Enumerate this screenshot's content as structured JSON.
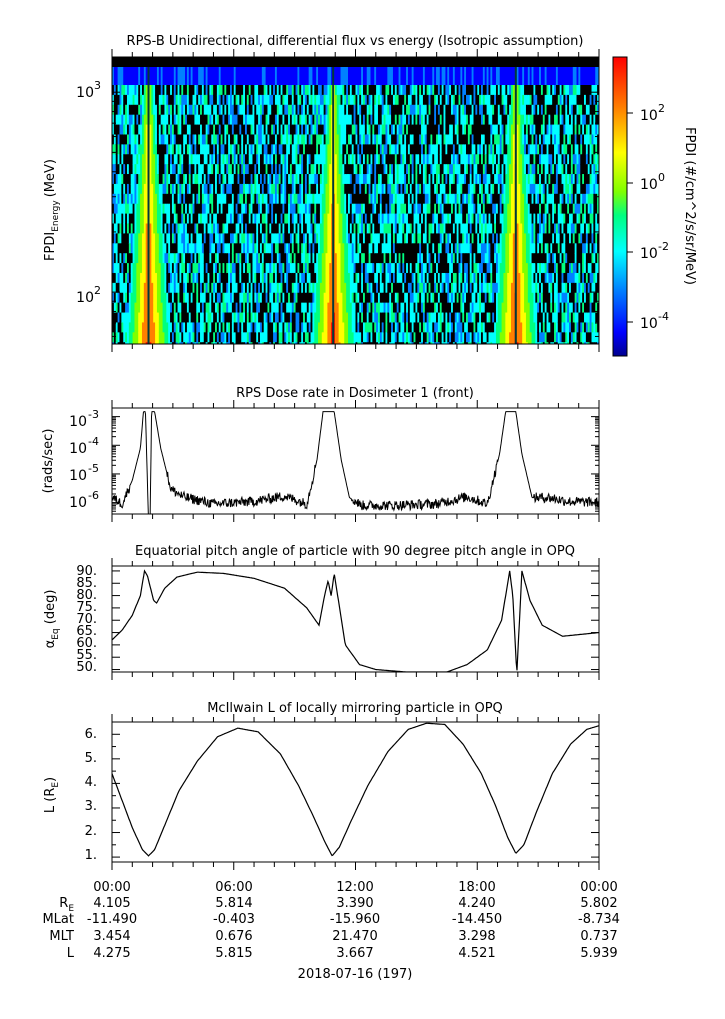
{
  "panels": [
    {
      "title": "RPS-B  Unidirectional, differential flux vs energy (Isotropic assumption)",
      "ylabel_main": "FPDI",
      "ylabel_sub": "Energy",
      "ylabel_unit": "(MeV)",
      "ytick_labels": [
        "10",
        "10"
      ],
      "ytick_exps": [
        "3",
        "2"
      ],
      "colorbar": {
        "label": "FPDI (#/cm^2/s/sr/MeV)",
        "tick_labels": [
          "10",
          "10",
          "10",
          "10"
        ],
        "tick_exps": [
          "2",
          "0",
          "-2",
          "-4"
        ],
        "colors": [
          "#00008f",
          "#0000ff",
          "#0080ff",
          "#00ffff",
          "#00ff80",
          "#80ff00",
          "#ffff00",
          "#ff8000",
          "#ff0000"
        ]
      }
    },
    {
      "title": "RPS  Dose rate in Dosimeter 1 (front)",
      "ylabel": "(rads/sec)",
      "ytick_labels": [
        "10",
        "10",
        "10",
        "10"
      ],
      "ytick_exps": [
        "-3",
        "-4",
        "-5",
        "-6"
      ]
    },
    {
      "title": "Equatorial pitch angle of particle with 90 degree pitch angle in OPQ",
      "ylabel_main": "α",
      "ylabel_sub": "Eq",
      "ylabel_unit": " (deg)",
      "ytick_labels": [
        "90.",
        "85.",
        "80.",
        "75.",
        "70.",
        "65.",
        "60.",
        "55.",
        "50."
      ]
    },
    {
      "title": "McIlwain L of locally mirroring particle in OPQ",
      "ylabel_main": "L (R",
      "ylabel_sub": "E",
      "ylabel_unit": ")",
      "ytick_labels": [
        "6.",
        "5.",
        "4.",
        "3.",
        "2.",
        "1."
      ]
    }
  ],
  "xaxis": {
    "time_labels": [
      "00:00",
      "06:00",
      "12:00",
      "18:00",
      "00:00"
    ],
    "ephem_rows": [
      {
        "label": "R",
        "label_sub": "E",
        "values": [
          "4.105",
          "5.814",
          "3.390",
          "4.240",
          "5.802"
        ]
      },
      {
        "label": "MLat",
        "label_sub": "",
        "values": [
          "-11.490",
          "-0.403",
          "-15.960",
          "-14.450",
          "-8.734"
        ]
      },
      {
        "label": "MLT",
        "label_sub": "",
        "values": [
          "3.454",
          "0.676",
          "21.470",
          "3.298",
          "0.737"
        ]
      },
      {
        "label": "L",
        "label_sub": "",
        "values": [
          "4.275",
          "5.815",
          "3.667",
          "4.521",
          "5.939"
        ]
      }
    ],
    "date_label": "2018-07-16 (197)"
  },
  "chart_data": [
    {
      "type": "heatmap",
      "title": "RPS-B  Unidirectional, differential flux vs energy (Isotropic assumption)",
      "xlabel": "",
      "ylabel": "FPDI Energy (MeV)",
      "x_range_hours": [
        0,
        24
      ],
      "y_range_MeV": [
        55,
        1500
      ],
      "y_scale": "log",
      "color_label": "FPDI (#/cm^2/s/sr/MeV)",
      "color_range": [
        1e-05,
        3000
      ],
      "color_scale": "log",
      "peak_flux_times_hours": [
        1.8,
        10.9,
        19.9
      ]
    },
    {
      "type": "line",
      "title": "RPS  Dose rate in Dosimeter 1 (front)",
      "ylabel": "(rads/sec)",
      "y_scale": "log",
      "ylim": [
        4e-07,
        0.002
      ],
      "x_hours": [
        0.0,
        0.5,
        1.0,
        1.4,
        1.55,
        1.65,
        1.85,
        1.95,
        2.1,
        2.4,
        2.9,
        3.5,
        5,
        7,
        8.5,
        9.6,
        10.1,
        10.4,
        10.55,
        10.8,
        10.95,
        11.3,
        11.7,
        12.3,
        14,
        16,
        17.5,
        18.5,
        19.1,
        19.4,
        19.55,
        19.8,
        19.9,
        20.2,
        20.7,
        21.5,
        22.5,
        24.0
      ],
      "values": [
        1.5e-06,
        9e-07,
        6e-06,
        8e-05,
        0.0015,
        0.0015,
        1e-08,
        0.0015,
        0.0015,
        8e-05,
        3e-06,
        1.6e-06,
        9e-07,
        1.1e-06,
        1.7e-06,
        9e-07,
        3e-05,
        0.0015,
        0.0015,
        0.0015,
        0.0015,
        3e-05,
        1.5e-06,
        8e-07,
        8e-07,
        9e-07,
        1.6e-06,
        9e-07,
        5e-05,
        0.0015,
        0.0015,
        0.0015,
        0.0015,
        5e-05,
        1.5e-06,
        1.5e-06,
        1.1e-06,
        1e-06
      ]
    },
    {
      "type": "line",
      "title": "Equatorial pitch angle of particle with 90 degree pitch angle in OPQ",
      "ylabel": "αEq (deg)",
      "ylim": [
        49,
        92
      ],
      "x_hours": [
        0.0,
        0.5,
        1.0,
        1.4,
        1.6,
        1.75,
        2.05,
        2.2,
        2.6,
        3.2,
        4.2,
        5.5,
        7,
        8.5,
        9.6,
        10.2,
        10.5,
        10.65,
        10.8,
        10.95,
        11.5,
        12.2,
        13,
        14.5,
        16.5,
        17.5,
        18.5,
        19.2,
        19.6,
        19.75,
        19.95,
        20.2,
        20.4,
        20.6,
        21.2,
        22.2,
        24.0
      ],
      "values": [
        62,
        66,
        72,
        80,
        90,
        88,
        78,
        77,
        83,
        87.5,
        89.5,
        89,
        87,
        83,
        75,
        68,
        81,
        86,
        80,
        89,
        60,
        52,
        50,
        49,
        49,
        52,
        58,
        70,
        90,
        80,
        48,
        90,
        84,
        78,
        68,
        63.5,
        65
      ]
    },
    {
      "type": "line",
      "title": "McIlwain L of locally mirroring particle in OPQ",
      "ylabel": "L (RE)",
      "ylim": [
        0.8,
        6.5
      ],
      "x_hours": [
        0.0,
        0.5,
        1.0,
        1.5,
        1.8,
        2.1,
        2.6,
        3.3,
        4.2,
        5.2,
        6.2,
        7.2,
        8.3,
        9.2,
        9.9,
        10.5,
        10.85,
        11.2,
        11.8,
        12.6,
        13.6,
        14.6,
        15.5,
        16.4,
        17.3,
        18.2,
        18.9,
        19.5,
        19.9,
        20.3,
        20.9,
        21.7,
        22.6,
        23.4,
        24.0
      ],
      "values": [
        4.4,
        3.3,
        2.2,
        1.3,
        1.05,
        1.3,
        2.3,
        3.7,
        4.9,
        5.9,
        6.25,
        6.1,
        5.2,
        3.9,
        2.7,
        1.6,
        1.05,
        1.4,
        2.5,
        3.9,
        5.3,
        6.2,
        6.45,
        6.4,
        5.6,
        4.4,
        3.1,
        1.8,
        1.15,
        1.5,
        2.8,
        4.4,
        5.6,
        6.2,
        6.35
      ]
    }
  ]
}
